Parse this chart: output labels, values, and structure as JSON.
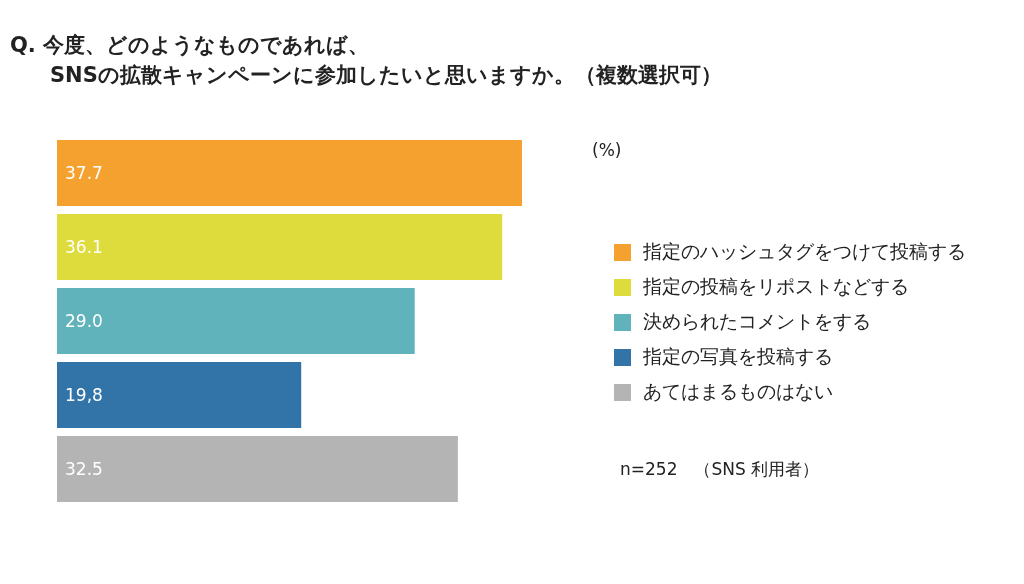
{
  "chart_data": {
    "type": "bar",
    "orientation": "horizontal",
    "stacked": true,
    "title": "Q. 今度、どのようなものであれば、\nSNSの拡散キャンペーンに参加したいと思いますか。（複数選択可）",
    "categories": [
      null,
      null,
      null,
      null,
      null
    ],
    "series": [
      {
        "name": "指定のハッシュタグをつけて投稿する",
        "color": "#f4a12f",
        "values": [
          37.7,
          null,
          null,
          null,
          null
        ],
        "value_labels": [
          "37.7",
          null,
          null,
          null,
          null
        ]
      },
      {
        "name": "指定の投稿をリポストなどする",
        "color": "#dedb3d",
        "values": [
          null,
          36.1,
          null,
          null,
          null
        ],
        "value_labels": [
          null,
          "36.1",
          null,
          null,
          null
        ]
      },
      {
        "name": "決められたコメントをする",
        "color": "#60b2bb",
        "values": [
          null,
          null,
          29.0,
          null,
          null
        ],
        "value_labels": [
          null,
          null,
          "29.0",
          null,
          null
        ]
      },
      {
        "name": "指定の写真を投稿する",
        "color": "#3274a8",
        "values": [
          null,
          null,
          null,
          19.8,
          null
        ],
        "value_labels": [
          null,
          null,
          null,
          "19,8",
          null
        ]
      },
      {
        "name": "あてはまるものはない",
        "color": "#b4b4b4",
        "values": [
          null,
          null,
          null,
          null,
          32.5
        ],
        "value_labels": [
          null,
          null,
          null,
          null,
          "32.5"
        ]
      }
    ],
    "legend": "right",
    "annotations": [
      "(%)",
      "n=252　（SNS 利用者）"
    ]
  }
}
